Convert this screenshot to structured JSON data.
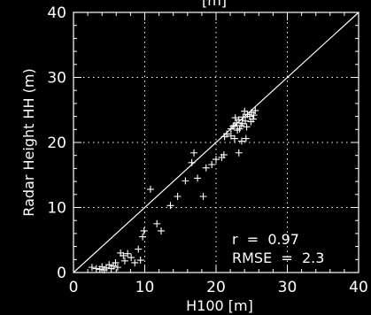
{
  "chart_data": {
    "type": "scatter",
    "title": "[m]",
    "xlabel": "H100 [m]",
    "ylabel": "Radar Height HH (m)",
    "xlim": [
      0,
      40
    ],
    "ylim": [
      0,
      40
    ],
    "xticks": [
      "0",
      "10",
      "20",
      "30",
      "40"
    ],
    "yticks": [
      "0",
      "10",
      "20",
      "30",
      "40"
    ],
    "grid": true,
    "reference_line": "1:1",
    "annotations": [
      "r  =  0.97",
      "RMSE  =  2.3"
    ],
    "marker": "plus",
    "colors": {
      "background": "#000000",
      "foreground": "#ffffff"
    },
    "points": [
      [
        2.6,
        0.8
      ],
      [
        3.2,
        0.6
      ],
      [
        3.7,
        0.5
      ],
      [
        4.0,
        0.9
      ],
      [
        4.3,
        0.4
      ],
      [
        4.6,
        0.7
      ],
      [
        5.0,
        1.2
      ],
      [
        5.3,
        0.6
      ],
      [
        5.6,
        1.0
      ],
      [
        5.9,
        1.5
      ],
      [
        6.2,
        0.8
      ],
      [
        6.6,
        3.0
      ],
      [
        7.0,
        2.6
      ],
      [
        7.2,
        1.8
      ],
      [
        7.6,
        2.9
      ],
      [
        8.1,
        2.3
      ],
      [
        8.6,
        1.5
      ],
      [
        9.1,
        3.6
      ],
      [
        9.4,
        1.9
      ],
      [
        9.7,
        5.5
      ],
      [
        9.9,
        6.4
      ],
      [
        10.8,
        12.8
      ],
      [
        11.7,
        7.5
      ],
      [
        12.3,
        6.4
      ],
      [
        13.6,
        10.3
      ],
      [
        14.6,
        11.7
      ],
      [
        15.7,
        14.1
      ],
      [
        16.6,
        16.9
      ],
      [
        16.9,
        18.4
      ],
      [
        17.4,
        14.5
      ],
      [
        18.2,
        11.7
      ],
      [
        18.6,
        16.1
      ],
      [
        19.4,
        16.6
      ],
      [
        20.0,
        17.4
      ],
      [
        21.1,
        18.1
      ],
      [
        20.8,
        17.7
      ],
      [
        21.2,
        20.9
      ],
      [
        21.5,
        21.3
      ],
      [
        22.1,
        21.0
      ],
      [
        22.6,
        20.6
      ],
      [
        23.0,
        21.9
      ],
      [
        23.2,
        18.4
      ],
      [
        23.6,
        20.2
      ],
      [
        24.2,
        20.6
      ],
      [
        22.1,
        22.1
      ],
      [
        22.6,
        22.6
      ],
      [
        22.9,
        23.0
      ],
      [
        23.2,
        23.5
      ],
      [
        23.5,
        22.6
      ],
      [
        23.8,
        23.9
      ],
      [
        24.1,
        23.3
      ],
      [
        24.4,
        24.3
      ],
      [
        24.7,
        24.0
      ],
      [
        25.0,
        24.6
      ],
      [
        25.2,
        23.6
      ],
      [
        25.5,
        24.9
      ],
      [
        23.3,
        22.1
      ],
      [
        24.3,
        22.4
      ],
      [
        22.7,
        23.8
      ],
      [
        24.0,
        24.8
      ],
      [
        23.7,
        22.9
      ],
      [
        24.9,
        23.2
      ],
      [
        22.4,
        22.5
      ],
      [
        25.3,
        24.2
      ]
    ]
  }
}
